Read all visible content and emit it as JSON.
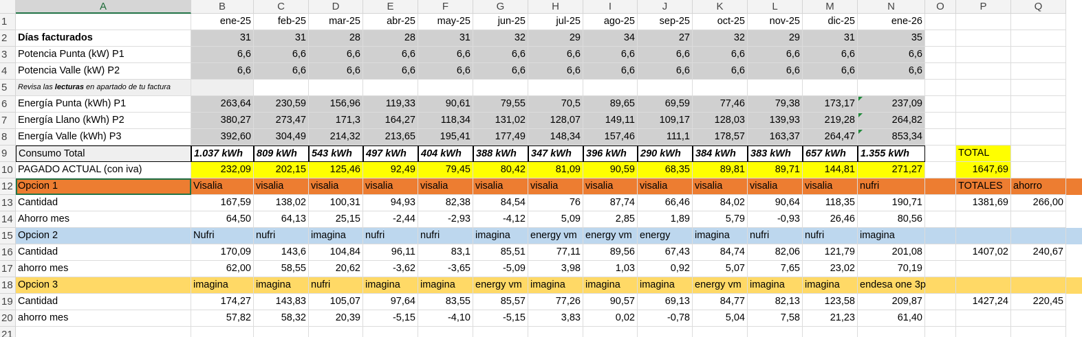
{
  "columns": [
    "A",
    "B",
    "C",
    "D",
    "E",
    "F",
    "G",
    "H",
    "I",
    "J",
    "K",
    "L",
    "M",
    "N",
    "O",
    "P",
    "Q"
  ],
  "rows": [
    "1",
    "2",
    "3",
    "4",
    "5",
    "6",
    "7",
    "8",
    "9",
    "10",
    "12",
    "13",
    "14",
    "15",
    "16",
    "17",
    "18",
    "19",
    "20",
    "21"
  ],
  "cells": {
    "r1": {
      "B": "ene-25",
      "C": "feb-25",
      "D": "mar-25",
      "E": "abr-25",
      "F": "may-25",
      "G": "jun-25",
      "H": "jul-25",
      "I": "ago-25",
      "J": "sep-25",
      "K": "oct-25",
      "L": "nov-25",
      "M": "dic-25",
      "N": "ene-26"
    },
    "r2": {
      "A": "Días facturados",
      "B": "31",
      "C": "31",
      "D": "28",
      "E": "28",
      "F": "31",
      "G": "32",
      "H": "29",
      "I": "34",
      "J": "27",
      "K": "32",
      "L": "29",
      "M": "31",
      "N": "35"
    },
    "r3": {
      "A": "Potencia Punta (kW) P1",
      "B": "6,6",
      "C": "6,6",
      "D": "6,6",
      "E": "6,6",
      "F": "6,6",
      "G": "6,6",
      "H": "6,6",
      "I": "6,6",
      "J": "6,6",
      "K": "6,6",
      "L": "6,6",
      "M": "6,6",
      "N": "6,6"
    },
    "r4": {
      "A": "Potencia Valle (kW) P2",
      "B": "6,6",
      "C": "6,6",
      "D": "6,6",
      "E": "6,6",
      "F": "6,6",
      "G": "6,6",
      "H": "6,6",
      "I": "6,6",
      "J": "6,6",
      "K": "6,6",
      "L": "6,6",
      "M": "6,6",
      "N": "6,6"
    },
    "r5": {
      "A_pre": "Revisa las ",
      "A_bold": "lecturas",
      "A_post": " en apartado de tu factura"
    },
    "r6": {
      "A": "Energía Punta (kWh) P1",
      "B": "263,64",
      "C": "230,59",
      "D": "156,96",
      "E": "119,33",
      "F": "90,61",
      "G": "79,55",
      "H": "70,5",
      "I": "89,65",
      "J": "69,59",
      "K": "77,46",
      "L": "79,38",
      "M": "173,17",
      "N": "237,09"
    },
    "r7": {
      "A": "Energía Llano (kWh) P2",
      "B": "380,27",
      "C": "273,47",
      "D": "171,3",
      "E": "164,27",
      "F": "118,34",
      "G": "131,02",
      "H": "128,07",
      "I": "149,11",
      "J": "109,17",
      "K": "128,03",
      "L": "139,93",
      "M": "219,28",
      "N": "264,82"
    },
    "r8": {
      "A": "Energía Valle (kWh) P3",
      "B": "392,60",
      "C": "304,49",
      "D": "214,32",
      "E": "213,65",
      "F": "195,41",
      "G": "177,49",
      "H": "148,34",
      "I": "157,46",
      "J": "111,1",
      "K": "178,57",
      "L": "163,37",
      "M": "264,47",
      "N": "853,34"
    },
    "r9": {
      "A": "Consumo Total",
      "B": "1.037 kWh",
      "C": "809 kWh",
      "D": "543 kWh",
      "E": "497 kWh",
      "F": "404 kWh",
      "G": "388 kWh",
      "H": "347 kWh",
      "I": "396 kWh",
      "J": "290 kWh",
      "K": "384 kWh",
      "L": "383 kWh",
      "M": "657 kWh",
      "N": "1.355 kWh",
      "P": "TOTAL"
    },
    "r10": {
      "A": "PAGADO ACTUAL (con iva)",
      "B": "232,09",
      "C": "202,15",
      "D": "125,46",
      "E": "92,49",
      "F": "79,45",
      "G": "80,42",
      "H": "81,09",
      "I": "90,59",
      "J": "68,35",
      "K": "89,81",
      "L": "89,71",
      "M": "144,81",
      "N": "271,27",
      "P": "1647,69"
    },
    "r12": {
      "A": "Opcion 1",
      "B": "Visalia",
      "C": "visalia",
      "D": "visalia",
      "E": "visalia",
      "F": "visalia",
      "G": "visalia",
      "H": "visalia",
      "I": "visalia",
      "J": "visalia",
      "K": "visalia",
      "L": "visalia",
      "M": "visalia",
      "N": "nufri",
      "P": "TOTALES",
      "Q": "ahorro"
    },
    "r13": {
      "A": "Cantidad",
      "B": "167,59",
      "C": "138,02",
      "D": "100,31",
      "E": "94,93",
      "F": "82,38",
      "G": "84,54",
      "H": "76",
      "I": "87,74",
      "J": "66,46",
      "K": "84,02",
      "L": "90,64",
      "M": "118,35",
      "N": "190,71",
      "P": "1381,69",
      "Q": "266,00"
    },
    "r14": {
      "A": "Ahorro  mes",
      "B": "64,50",
      "C": "64,13",
      "D": "25,15",
      "E": "-2,44",
      "F": "-2,93",
      "G": "-4,12",
      "H": "5,09",
      "I": "2,85",
      "J": "1,89",
      "K": "5,79",
      "L": "-0,93",
      "M": "26,46",
      "N": "80,56"
    },
    "r15": {
      "A": "Opcion 2",
      "B": "Nufri",
      "C": "nufri",
      "D": "imagina",
      "E": "nufri",
      "F": "nufri",
      "G": "imagina",
      "H": "energy vm",
      "I": "energy vm",
      "J": "energy",
      "K": "imagina",
      "L": "nufri",
      "M": "nufri",
      "N": "imagina"
    },
    "r16": {
      "A": "Cantidad",
      "B": "170,09",
      "C": "143,6",
      "D": "104,84",
      "E": "96,11",
      "F": "83,1",
      "G": "85,51",
      "H": "77,11",
      "I": "89,56",
      "J": "67,43",
      "K": "84,74",
      "L": "82,06",
      "M": "121,79",
      "N": "201,08",
      "P": "1407,02",
      "Q": "240,67"
    },
    "r17": {
      "A": "ahorro mes",
      "B": "62,00",
      "C": "58,55",
      "D": "20,62",
      "E": "-3,62",
      "F": "-3,65",
      "G": "-5,09",
      "H": "3,98",
      "I": "1,03",
      "J": "0,92",
      "K": "5,07",
      "L": "7,65",
      "M": "23,02",
      "N": "70,19"
    },
    "r18": {
      "A": "Opcion 3",
      "B": "imagina",
      "C": "imagina",
      "D": "nufri",
      "E": "imagina",
      "F": "imagina",
      "G": "energy vm",
      "H": "imagina",
      "I": "imagina",
      "J": "imagina",
      "K": "energy vm",
      "L": "imagina",
      "M": "imagina",
      "N": "endesa one 3p"
    },
    "r19": {
      "A": "Cantidad",
      "B": "174,27",
      "C": "143,83",
      "D": "105,07",
      "E": "97,64",
      "F": "83,55",
      "G": "85,57",
      "H": "77,26",
      "I": "90,57",
      "J": "69,13",
      "K": "84,77",
      "L": "82,13",
      "M": "123,58",
      "N": "209,87",
      "P": "1427,24",
      "Q": "220,45"
    },
    "r20": {
      "A": "ahorro mes",
      "B": "57,82",
      "C": "58,32",
      "D": "20,39",
      "E": "-5,15",
      "F": "-4,10",
      "G": "-5,15",
      "H": "3,83",
      "I": "0,02",
      "J": "-0,78",
      "K": "5,04",
      "L": "7,58",
      "M": "21,23",
      "N": "61,40"
    }
  },
  "colors": {
    "header_bg": "#f3f3f3",
    "gray_fill": "#d0d0d0",
    "yellow": "#ffff00",
    "orange": "#ed7d31",
    "light_blue": "#bdd7ee",
    "gold": "#ffd966",
    "selection": "#217346"
  }
}
